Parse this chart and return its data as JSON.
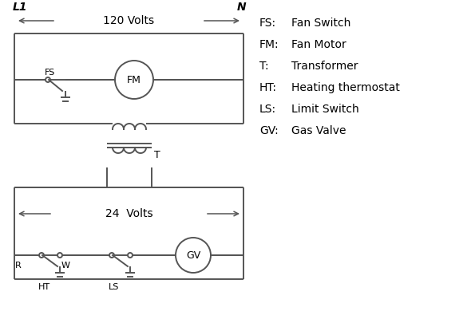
{
  "bg_color": "#ffffff",
  "line_color": "#555555",
  "text_color": "#000000",
  "legend": {
    "FS": "Fan Switch",
    "FM": "Fan Motor",
    "T": "Transformer",
    "HT": "Heating thermostat",
    "LS": "Limit Switch",
    "GV": "Gas Valve"
  },
  "volts_120_label": "120 Volts",
  "volts_24_label": "24  Volts",
  "L1_label": "L1",
  "N_label": "N",
  "T_label": "T",
  "R_label": "R",
  "W_label": "W",
  "HT_label": "HT",
  "LS_label": "LS",
  "FS_label": "FS",
  "FM_label": "FM",
  "GV_label": "GV"
}
